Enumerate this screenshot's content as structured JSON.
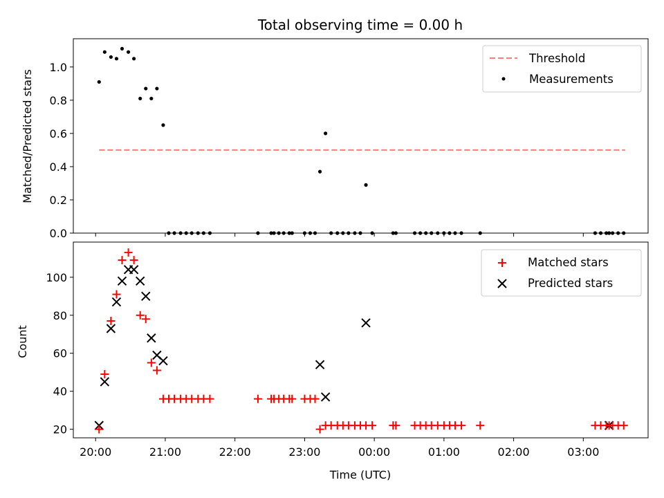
{
  "chart_data": [
    {
      "type": "scatter",
      "title": "Total observing time = 0.00 h",
      "ylabel": "Matched/Predicted stars",
      "xlabel": "",
      "x_unit": "hours since 20:00 UTC",
      "xlim": [
        -0.32,
        7.93
      ],
      "ylim": [
        0,
        1.17
      ],
      "yticks": [
        0.0,
        0.2,
        0.4,
        0.6,
        0.8,
        1.0
      ],
      "ytick_labels": [
        "0.0",
        "0.2",
        "0.4",
        "0.6",
        "0.8",
        "1.0"
      ],
      "legend": {
        "position": "top-right",
        "entries": [
          "Threshold",
          "Measurements"
        ]
      },
      "threshold": {
        "name": "Threshold",
        "value": 0.5,
        "x_range": [
          0.05,
          7.6
        ],
        "color": "#ff7a7a"
      },
      "series": [
        {
          "name": "Measurements",
          "marker": "dot",
          "color": "#000000",
          "x": [
            0.05,
            0.13,
            0.22,
            0.3,
            0.38,
            0.47,
            0.55,
            0.64,
            0.72,
            0.8,
            0.88,
            0.97,
            1.05,
            1.13,
            1.22,
            1.3,
            1.38,
            1.47,
            1.55,
            1.64,
            2.33,
            2.52,
            2.56,
            2.63,
            2.7,
            2.78,
            2.82,
            3.0,
            3.08,
            3.15,
            3.22,
            3.3,
            3.38,
            3.47,
            3.55,
            3.63,
            3.72,
            3.8,
            3.88,
            3.97,
            4.27,
            4.31,
            4.58,
            4.66,
            4.74,
            4.82,
            4.91,
            5.0,
            5.08,
            5.16,
            5.25,
            5.52,
            7.17,
            7.25,
            7.33,
            7.37,
            7.42,
            7.5,
            7.58
          ],
          "y": [
            0.91,
            1.09,
            1.06,
            1.05,
            1.11,
            1.09,
            1.05,
            0.81,
            0.87,
            0.81,
            0.87,
            0.65,
            0.0,
            0.0,
            0.0,
            0.0,
            0.0,
            0.0,
            0.0,
            0.0,
            0.0,
            0.0,
            0.0,
            0.0,
            0.0,
            0.0,
            0.0,
            0.0,
            0.0,
            0.0,
            0.37,
            0.6,
            0.0,
            0.0,
            0.0,
            0.0,
            0.0,
            0.0,
            0.29,
            0.0,
            0.0,
            0.0,
            0.0,
            0.0,
            0.0,
            0.0,
            0.0,
            0.0,
            0.0,
            0.0,
            0.0,
            0.0,
            0.0,
            0.0,
            0.0,
            0.0,
            0.0,
            0.0,
            0.0
          ]
        }
      ]
    },
    {
      "type": "scatter",
      "title": "",
      "ylabel": "Count",
      "xlabel": "Time (UTC)",
      "x_unit": "hours since 20:00 UTC",
      "xlim": [
        -0.32,
        7.93
      ],
      "ylim": [
        15.5,
        118.5
      ],
      "yticks": [
        20,
        40,
        60,
        80,
        100
      ],
      "ytick_labels": [
        "20",
        "40",
        "60",
        "80",
        "100"
      ],
      "xticks": [
        0,
        1,
        2,
        3,
        4,
        5,
        6,
        7
      ],
      "xtick_labels": [
        "20:00",
        "21:00",
        "22:00",
        "23:00",
        "00:00",
        "01:00",
        "02:00",
        "03:00"
      ],
      "legend": {
        "position": "top-right",
        "entries": [
          "Matched stars",
          "Predicted stars"
        ]
      },
      "series": [
        {
          "name": "Matched stars",
          "marker": "plus",
          "color": "#ff0000",
          "x": [
            0.05,
            0.13,
            0.22,
            0.3,
            0.38,
            0.47,
            0.55,
            0.64,
            0.72,
            0.8,
            0.88,
            0.97,
            1.05,
            1.13,
            1.22,
            1.3,
            1.38,
            1.47,
            1.55,
            1.64,
            2.33,
            2.52,
            2.56,
            2.63,
            2.7,
            2.78,
            2.82,
            3.0,
            3.08,
            3.15,
            3.22,
            3.3,
            3.38,
            3.47,
            3.55,
            3.63,
            3.72,
            3.8,
            3.88,
            3.97,
            4.27,
            4.31,
            4.58,
            4.66,
            4.74,
            4.82,
            4.91,
            5.0,
            5.08,
            5.16,
            5.25,
            5.52,
            7.17,
            7.25,
            7.33,
            7.37,
            7.42,
            7.5,
            7.58
          ],
          "y": [
            20,
            49,
            77,
            91,
            109,
            113,
            109,
            80,
            78,
            55,
            51,
            36,
            36,
            36,
            36,
            36,
            36,
            36,
            36,
            36,
            36,
            36,
            36,
            36,
            36,
            36,
            36,
            36,
            36,
            36,
            20,
            22,
            22,
            22,
            22,
            22,
            22,
            22,
            22,
            22,
            22,
            22,
            22,
            22,
            22,
            22,
            22,
            22,
            22,
            22,
            22,
            22,
            22,
            22,
            22,
            22,
            22,
            22,
            22
          ]
        },
        {
          "name": "Predicted stars",
          "marker": "x",
          "color": "#000000",
          "x": [
            0.05,
            0.13,
            0.22,
            0.3,
            0.38,
            0.47,
            0.55,
            0.64,
            0.72,
            0.8,
            0.88,
            0.97,
            3.22,
            3.3,
            3.88,
            7.37
          ],
          "y": [
            22,
            45,
            73,
            87,
            98,
            104,
            104,
            98,
            90,
            68,
            59,
            56,
            54,
            37,
            76,
            22
          ]
        }
      ]
    }
  ]
}
